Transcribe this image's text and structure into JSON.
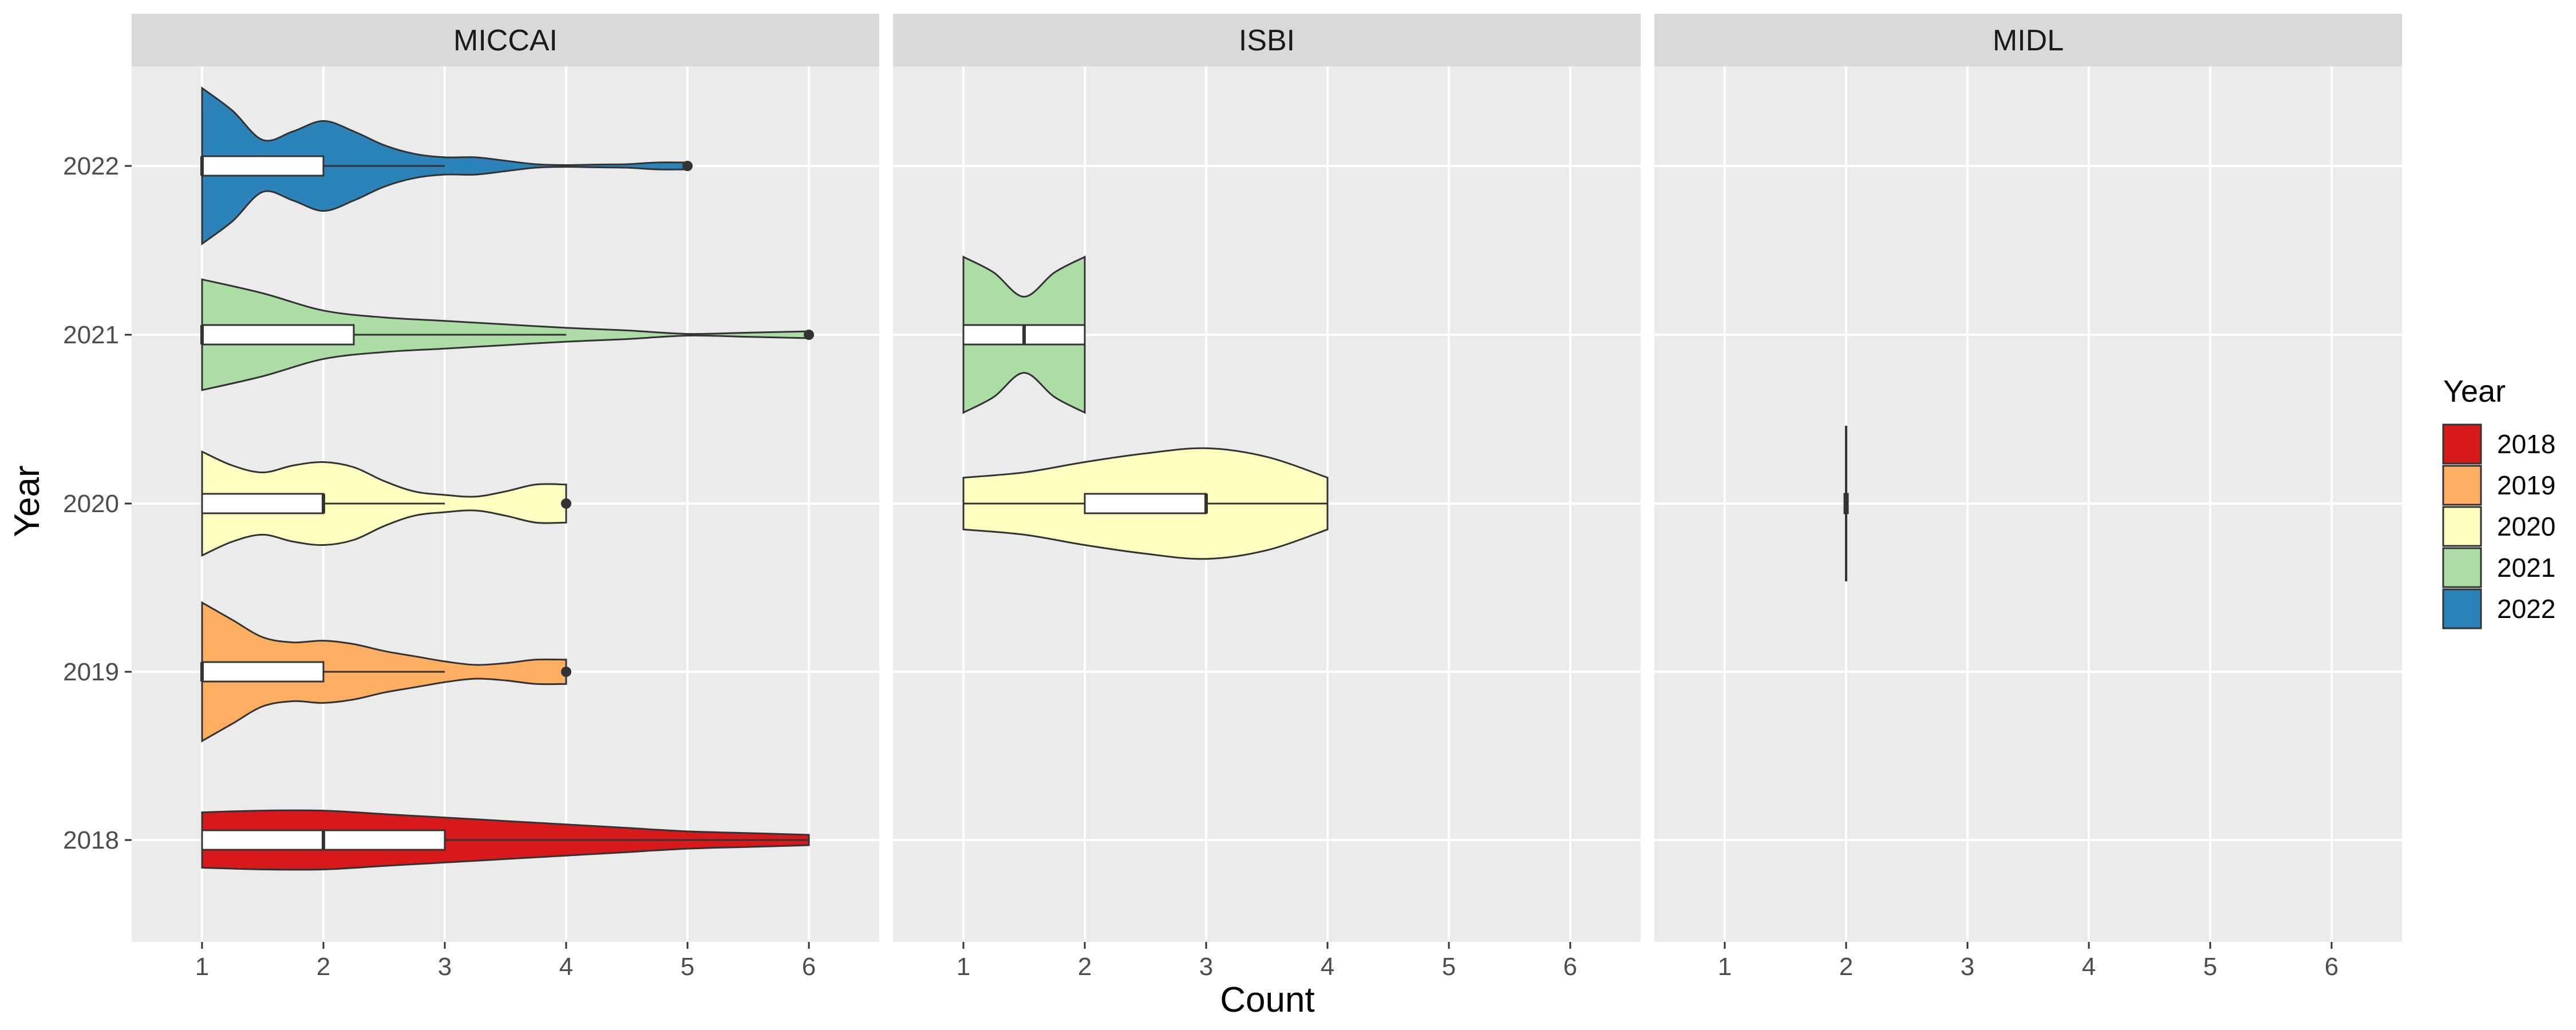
{
  "chart_data": {
    "type": "violin",
    "facets": [
      "MICCAI",
      "ISBI",
      "MIDL"
    ],
    "xlabel": "Count",
    "ylabel": "Year",
    "x_ticks": [
      1,
      2,
      3,
      4,
      5,
      6
    ],
    "xlim": [
      0.42,
      6.58
    ],
    "y_categories": [
      "2018",
      "2019",
      "2020",
      "2021",
      "2022"
    ],
    "legend": {
      "title": "Year",
      "position": "right",
      "entries": [
        {
          "label": "2018",
          "color": "#D7191C"
        },
        {
          "label": "2019",
          "color": "#FDAE61"
        },
        {
          "label": "2020",
          "color": "#FFFFBF"
        },
        {
          "label": "2021",
          "color": "#ABDDA4"
        },
        {
          "label": "2022",
          "color": "#2B83BA"
        }
      ]
    },
    "groups": [
      {
        "facet": "MICCAI",
        "year": "2022",
        "min": 1,
        "max": 5,
        "box": {
          "q1": 1,
          "median": 1,
          "q3": 2,
          "whisker_hi": 3
        },
        "outliers": [
          5
        ],
        "density": [
          [
            1,
            0.45
          ],
          [
            1.25,
            0.32
          ],
          [
            1.5,
            0.15
          ],
          [
            1.75,
            0.2
          ],
          [
            2,
            0.26
          ],
          [
            2.25,
            0.2
          ],
          [
            2.5,
            0.12
          ],
          [
            2.75,
            0.07
          ],
          [
            3,
            0.05
          ],
          [
            3.25,
            0.05
          ],
          [
            3.5,
            0.03
          ],
          [
            3.75,
            0.01
          ],
          [
            4,
            0.005
          ],
          [
            4.25,
            0.008
          ],
          [
            4.5,
            0.01
          ],
          [
            4.75,
            0.02
          ],
          [
            5,
            0.02
          ]
        ]
      },
      {
        "facet": "MICCAI",
        "year": "2021",
        "min": 1,
        "max": 6,
        "box": {
          "q1": 1,
          "median": 1,
          "q3": 2.25,
          "whisker_hi": 4
        },
        "outliers": [
          6
        ],
        "density": [
          [
            1,
            0.32
          ],
          [
            1.5,
            0.24
          ],
          [
            2,
            0.14
          ],
          [
            2.5,
            0.1
          ],
          [
            3,
            0.08
          ],
          [
            3.5,
            0.06
          ],
          [
            4,
            0.04
          ],
          [
            4.5,
            0.025
          ],
          [
            5,
            0.005
          ],
          [
            5.5,
            0.012
          ],
          [
            6,
            0.02
          ]
        ]
      },
      {
        "facet": "MICCAI",
        "year": "2020",
        "min": 1,
        "max": 4,
        "box": {
          "q1": 1,
          "median": 2,
          "q3": 2,
          "whisker_hi": 3
        },
        "outliers": [
          4
        ],
        "density": [
          [
            1,
            0.3
          ],
          [
            1.25,
            0.22
          ],
          [
            1.5,
            0.18
          ],
          [
            1.75,
            0.22
          ],
          [
            2,
            0.24
          ],
          [
            2.25,
            0.21
          ],
          [
            2.5,
            0.13
          ],
          [
            2.75,
            0.07
          ],
          [
            3,
            0.05
          ],
          [
            3.25,
            0.04
          ],
          [
            3.5,
            0.07
          ],
          [
            3.75,
            0.11
          ],
          [
            4,
            0.11
          ]
        ]
      },
      {
        "facet": "MICCAI",
        "year": "2019",
        "min": 1,
        "max": 4,
        "box": {
          "q1": 1,
          "median": 1,
          "q3": 2,
          "whisker_hi": 3
        },
        "outliers": [
          4
        ],
        "density": [
          [
            1,
            0.4
          ],
          [
            1.25,
            0.3
          ],
          [
            1.5,
            0.2
          ],
          [
            1.75,
            0.17
          ],
          [
            2,
            0.18
          ],
          [
            2.25,
            0.16
          ],
          [
            2.5,
            0.12
          ],
          [
            2.75,
            0.09
          ],
          [
            3,
            0.06
          ],
          [
            3.25,
            0.04
          ],
          [
            3.5,
            0.05
          ],
          [
            3.75,
            0.07
          ],
          [
            4,
            0.07
          ]
        ]
      },
      {
        "facet": "MICCAI",
        "year": "2018",
        "min": 1,
        "max": 6,
        "box": {
          "q1": 1,
          "median": 2,
          "q3": 3,
          "whisker_hi": 6
        },
        "outliers": [],
        "density": [
          [
            1,
            0.16
          ],
          [
            1.5,
            0.17
          ],
          [
            2,
            0.17
          ],
          [
            2.5,
            0.15
          ],
          [
            3,
            0.13
          ],
          [
            3.5,
            0.11
          ],
          [
            4,
            0.09
          ],
          [
            4.5,
            0.07
          ],
          [
            5,
            0.05
          ],
          [
            5.5,
            0.04
          ],
          [
            6,
            0.03
          ]
        ]
      },
      {
        "facet": "ISBI",
        "year": "2021",
        "min": 1,
        "max": 2,
        "box": {
          "q1": 1,
          "median": 1.5,
          "q3": 2,
          "whisker_hi": 2
        },
        "outliers": [],
        "density": [
          [
            1,
            0.45
          ],
          [
            1.25,
            0.36
          ],
          [
            1.5,
            0.22
          ],
          [
            1.75,
            0.36
          ],
          [
            2,
            0.45
          ]
        ]
      },
      {
        "facet": "ISBI",
        "year": "2020",
        "min": 1,
        "max": 4,
        "box": {
          "q1": 2,
          "median": 3,
          "q3": 3,
          "whisker_lo": 1,
          "whisker_hi": 4
        },
        "outliers": [],
        "density": [
          [
            1,
            0.15
          ],
          [
            1.5,
            0.18
          ],
          [
            2,
            0.24
          ],
          [
            2.5,
            0.29
          ],
          [
            3,
            0.32
          ],
          [
            3.5,
            0.27
          ],
          [
            4,
            0.15
          ]
        ]
      },
      {
        "facet": "MIDL",
        "year": "2020",
        "min": 2,
        "max": 2,
        "box": {
          "q1": 2,
          "median": 2,
          "q3": 2,
          "whisker_hi": 2
        },
        "outliers": [],
        "density": [
          [
            2,
            0.45
          ]
        ]
      }
    ]
  }
}
